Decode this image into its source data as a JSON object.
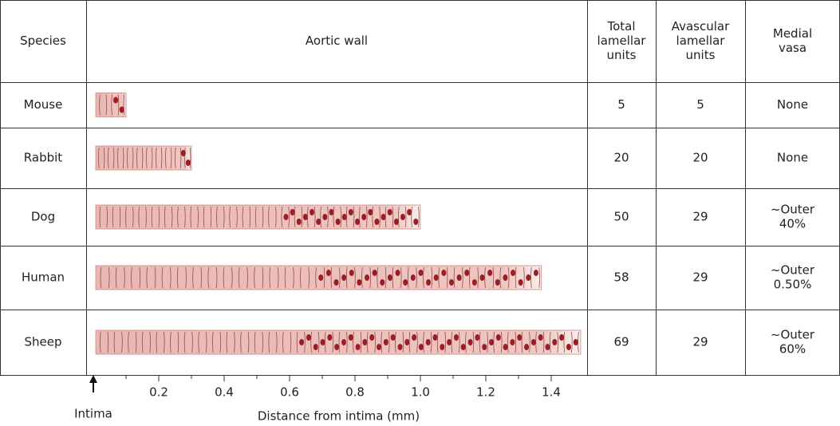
{
  "table": {
    "header": {
      "species": "Species",
      "wall": "Aortic wall",
      "total": [
        "Total",
        "lamellar",
        "units"
      ],
      "avascular": [
        "Avascular",
        "lamellar",
        "units"
      ],
      "vasa": [
        "Medial",
        "vasa"
      ]
    },
    "rows": [
      {
        "species": "Mouse",
        "thickness_mm": 0.1,
        "total": "5",
        "avascular": "5",
        "vasa": [
          "None"
        ]
      },
      {
        "species": "Rabbit",
        "thickness_mm": 0.3,
        "total": "20",
        "avascular": "20",
        "vasa": [
          "None"
        ]
      },
      {
        "species": "Dog",
        "thickness_mm": 1.0,
        "total": "50",
        "avascular": "29",
        "vasa": [
          "~Outer",
          "40%"
        ]
      },
      {
        "species": "Human",
        "thickness_mm": 1.37,
        "total": "58",
        "avascular": "29",
        "vasa": [
          "~Outer",
          "0.50%"
        ]
      },
      {
        "species": "Sheep",
        "thickness_mm": 1.49,
        "total": "69",
        "avascular": "29",
        "vasa": [
          "~Outer",
          "60%"
        ]
      }
    ],
    "axis": {
      "label": "Distance from intima (mm)",
      "origin_label": "Intima",
      "xlim": [
        0,
        1.5
      ],
      "xticks": [
        0.2,
        0.4,
        0.6,
        0.8,
        {
          "value": 1,
          "label": "1.0"
        },
        1.2,
        1.4
      ],
      "xminorticks": [
        0.1,
        0.3,
        0.5,
        0.7,
        0.9,
        1.1,
        1.3
      ]
    }
  }
}
